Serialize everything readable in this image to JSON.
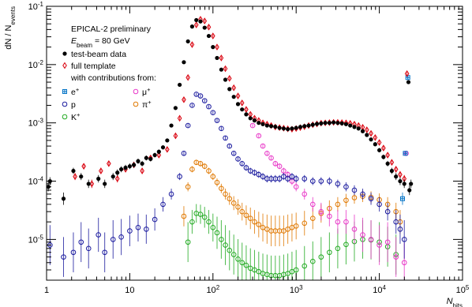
{
  "chart_data": {
    "type": "scatter",
    "title": "",
    "xlabel": "N",
    "xlabel_sub": "hits",
    "ylabel": "dN / N",
    "ylabel_sub": "events",
    "x_scale": "log",
    "y_scale": "log",
    "xlim": [
      1,
      100000
    ],
    "ylim": [
      2e-06,
      0.1
    ],
    "x_ticks": [
      {
        "value": 1,
        "base": "1",
        "exp": ""
      },
      {
        "value": 10,
        "base": "10",
        "exp": ""
      },
      {
        "value": 100,
        "base": "10",
        "exp": "2"
      },
      {
        "value": 1000,
        "base": "10",
        "exp": "3"
      },
      {
        "value": 10000,
        "base": "10",
        "exp": "4"
      },
      {
        "value": 100000,
        "base": "10",
        "exp": "5"
      }
    ],
    "y_ticks": [
      {
        "value": 1e-05,
        "base": "10",
        "exp": "-5"
      },
      {
        "value": 0.0001,
        "base": "10",
        "exp": "-4"
      },
      {
        "value": 0.001,
        "base": "10",
        "exp": "-3"
      },
      {
        "value": 0.01,
        "base": "10",
        "exp": "-2"
      },
      {
        "value": 0.1,
        "base": "10",
        "exp": "-1"
      }
    ],
    "annotations": {
      "line1": "EPICAL-2 preliminary",
      "line2_main": "E",
      "line2_sub": "beam",
      "line2_rest": " = 80 GeV"
    },
    "legend": {
      "placement": "top-left",
      "header": "with contributions from:",
      "main_entries": [
        {
          "label": "test-beam data",
          "series": "data"
        },
        {
          "label": "full template",
          "series": "template"
        }
      ],
      "component_entries": [
        {
          "label": "e",
          "sup": "+",
          "series": "electron"
        },
        {
          "label": "μ",
          "sup": "+",
          "series": "muon"
        },
        {
          "label": "p",
          "sup": "",
          "series": "proton"
        },
        {
          "label": "π",
          "sup": "+",
          "series": "pion"
        },
        {
          "label": "K",
          "sup": "+",
          "series": "kaon"
        }
      ]
    },
    "series": [
      {
        "id": "data",
        "name": "test-beam data",
        "color": "#000000",
        "marker": "filled-circle",
        "x": [
          1.05,
          1.1,
          1.6,
          2.1,
          2.6,
          3.2,
          4.2,
          5.0,
          6.3,
          7.1,
          7.9,
          8.9,
          10,
          11.2,
          12.6,
          14.1,
          15.8,
          17.8,
          20,
          22.4,
          25.1,
          28.2,
          31.6,
          35.5,
          39.8,
          44.7,
          50.1,
          56.2,
          63.1,
          70.8,
          79.4,
          89.1,
          100,
          112,
          126,
          141,
          158,
          178,
          200,
          224,
          251,
          282,
          316,
          355,
          398,
          447,
          501,
          562,
          631,
          708,
          794,
          891,
          1000,
          1122,
          1259,
          1413,
          1585,
          1778,
          1995,
          2239,
          2512,
          2818,
          3162,
          3548,
          3981,
          4467,
          5012,
          5623,
          6310,
          7079,
          7943,
          8913,
          10000,
          11220,
          12589,
          14125,
          15849,
          17783,
          19953,
          22387,
          23000,
          24000
        ],
        "y": [
          8e-05,
          0.0001,
          5e-05,
          0.00015,
          0.00012,
          9e-05,
          0.00011,
          9e-05,
          0.00012,
          0.00014,
          0.00016,
          0.00017,
          0.00018,
          0.00019,
          0.00022,
          0.0002,
          0.00025,
          0.00024,
          0.00028,
          0.00032,
          0.00038,
          0.0005,
          0.0009,
          0.0018,
          0.0045,
          0.011,
          0.025,
          0.045,
          0.058,
          0.055,
          0.043,
          0.031,
          0.02,
          0.013,
          0.0082,
          0.0055,
          0.0038,
          0.0028,
          0.0021,
          0.0017,
          0.0014,
          0.0012,
          0.0011,
          0.001,
          0.00095,
          0.0009,
          0.00088,
          0.00086,
          0.00082,
          0.0008,
          0.00078,
          0.0008,
          0.00082,
          0.00085,
          0.00088,
          0.0009,
          0.00093,
          0.00096,
          0.00098,
          0.001,
          0.001,
          0.00102,
          0.001,
          0.00098,
          0.00095,
          0.0009,
          0.00085,
          0.0008,
          0.00072,
          0.00062,
          0.00052,
          0.00043,
          0.00034,
          0.00026,
          0.0002,
          0.00015,
          0.00012,
          0.0001,
          9e-05,
          0.005,
          7e-05,
          9e-05
        ]
      },
      {
        "id": "template",
        "name": "full template",
        "color": "#d9000d",
        "marker": "open-diamond",
        "x": [
          2.2,
          2.8,
          3.5,
          4.5,
          5.6,
          7.1,
          8.9,
          11.2,
          14.1,
          17.8,
          22.4,
          28.2,
          35.5,
          39.8,
          44.7,
          50.1,
          56.2,
          63.1,
          70.8,
          79.4,
          89.1,
          100,
          112,
          126,
          141,
          158,
          178,
          200,
          224,
          251,
          282,
          316,
          355,
          398,
          447,
          501,
          562,
          631,
          708,
          794,
          891,
          1000,
          1122,
          1259,
          1413,
          1585,
          1778,
          1995,
          2239,
          2512,
          2818,
          3162,
          3548,
          3981,
          4467,
          5012,
          5623,
          6310,
          7079,
          7943,
          8913,
          10000,
          11220,
          12589,
          14125,
          15849,
          17783,
          19953,
          21500
        ],
        "y": [
          0.00012,
          0.00018,
          9e-05,
          0.00015,
          0.0002,
          0.00011,
          0.00016,
          0.00019,
          0.00015,
          0.00025,
          0.00028,
          0.00035,
          0.0006,
          0.0012,
          0.0025,
          0.006,
          0.022,
          0.048,
          0.06,
          0.056,
          0.044,
          0.031,
          0.02,
          0.013,
          0.0085,
          0.0058,
          0.004,
          0.0029,
          0.0022,
          0.0017,
          0.0014,
          0.0012,
          0.0011,
          0.001,
          0.00095,
          0.0009,
          0.00085,
          0.00083,
          0.00081,
          0.00079,
          0.00078,
          0.0008,
          0.00083,
          0.00086,
          0.0009,
          0.00093,
          0.00096,
          0.00099,
          0.001,
          0.00101,
          0.00102,
          0.00102,
          0.00101,
          0.001,
          0.00098,
          0.00095,
          0.0009,
          0.00084,
          0.00076,
          0.00066,
          0.00056,
          0.00046,
          0.00037,
          0.00028,
          0.00021,
          0.00016,
          0.00013,
          0.00011,
          0.007
        ]
      },
      {
        "id": "electron",
        "name": "e+",
        "color": "#0072c6",
        "marker": "cross-box",
        "x": [
          19000,
          20500,
          22000
        ],
        "y": [
          5e-05,
          0.0003,
          0.006
        ]
      },
      {
        "id": "muon",
        "name": "μ+",
        "color": "#e838c8",
        "marker": "open-circle",
        "x": [
          300,
          355,
          398,
          447,
          501,
          562,
          631,
          708,
          794,
          891,
          1000,
          1259,
          1585,
          1995,
          2512,
          3162,
          3981,
          5012,
          6310,
          7943,
          10000,
          12589,
          15849,
          19953,
          21000
        ],
        "y": [
          0.0009,
          0.0006,
          0.0004,
          0.0003,
          0.00025,
          0.0002,
          0.00018,
          0.00015,
          0.00013,
          0.0001,
          8e-05,
          6e-05,
          4e-05,
          3e-05,
          2.5e-05,
          2e-05,
          2e-05,
          1.5e-05,
          1.2e-05,
          1e-05,
          8e-06,
          9e-06,
          5e-06,
          4e-06,
          0.0003
        ]
      },
      {
        "id": "proton",
        "name": "p",
        "color": "#1a1a9e",
        "marker": "open-circle",
        "x": [
          1.1,
          1.6,
          2.1,
          2.6,
          3.2,
          4.2,
          5.0,
          6.3,
          7.9,
          10,
          12.6,
          15.8,
          20,
          25.1,
          31.6,
          39.8,
          44.7,
          50.1,
          56.2,
          63.1,
          70.8,
          79.4,
          89.1,
          100,
          112,
          126,
          141,
          158,
          178,
          200,
          224,
          251,
          282,
          316,
          355,
          398,
          447,
          501,
          562,
          631,
          708,
          794,
          891,
          1000,
          1259,
          1585,
          1995,
          2512,
          3162,
          3981,
          5012,
          6310,
          7943,
          10000,
          12589,
          15849,
          17783,
          19953
        ],
        "y": [
          8e-06,
          5e-06,
          6e-06,
          9e-06,
          7e-06,
          1.2e-05,
          6e-06,
          1e-05,
          1.1e-05,
          1.4e-05,
          1.6e-05,
          1.5e-05,
          2.2e-05,
          4e-05,
          6e-05,
          0.00012,
          0.0003,
          0.0009,
          0.002,
          0.0031,
          0.0029,
          0.0024,
          0.0019,
          0.0015,
          0.0011,
          0.0008,
          0.00055,
          0.0004,
          0.0003,
          0.00024,
          0.0002,
          0.00017,
          0.00015,
          0.00014,
          0.00013,
          0.00012,
          0.00011,
          0.00011,
          0.00011,
          0.00011,
          0.00012,
          0.00011,
          0.00012,
          0.00011,
          0.00011,
          0.0001,
          0.0001,
          0.0001,
          9e-05,
          8e-05,
          7e-05,
          6e-05,
          5e-05,
          4e-05,
          3e-05,
          2e-05,
          1.5e-05,
          1e-05
        ]
      },
      {
        "id": "pion",
        "name": "π+",
        "color": "#e07800",
        "marker": "open-circle",
        "x": [
          44.7,
          50.1,
          56.2,
          63.1,
          70.8,
          79.4,
          89.1,
          100,
          112,
          126,
          141,
          158,
          178,
          200,
          224,
          251,
          282,
          316,
          355,
          398,
          447,
          501,
          562,
          631,
          708,
          794,
          891,
          1000,
          1259,
          1585,
          1995,
          2512,
          3162,
          3981,
          5012,
          6310,
          7943,
          10000,
          12589,
          15849,
          17783
        ],
        "y": [
          2.5e-05,
          8e-05,
          0.00016,
          0.00021,
          0.0002,
          0.00018,
          0.00015,
          0.00012,
          9.5e-05,
          7.5e-05,
          6e-05,
          5e-05,
          4.2e-05,
          3.6e-05,
          3e-05,
          2.6e-05,
          2.3e-05,
          2e-05,
          1.8e-05,
          1.6e-05,
          1.5e-05,
          1.4e-05,
          1.4e-05,
          1.4e-05,
          1.4e-05,
          1.5e-05,
          1.6e-05,
          1.7e-05,
          1.9e-05,
          2.3e-05,
          2.8e-05,
          3.4e-05,
          4e-05,
          4.7e-05,
          5.2e-05,
          5.5e-05,
          5.3e-05,
          4.8e-05,
          4e-05,
          3e-05,
          2e-05
        ]
      },
      {
        "id": "kaon",
        "name": "K+",
        "color": "#22aa22",
        "marker": "open-circle",
        "x": [
          50.1,
          56.2,
          63.1,
          70.8,
          79.4,
          89.1,
          100,
          112,
          126,
          141,
          158,
          178,
          200,
          224,
          251,
          282,
          316,
          355,
          398,
          447,
          501,
          562,
          631,
          708,
          794,
          891,
          1000,
          1259,
          1585,
          1995,
          2512,
          3162,
          3981,
          5012,
          6310,
          7943,
          10000,
          12589,
          15849
        ],
        "y": [
          9e-06,
          2e-05,
          2.8e-05,
          2.7e-05,
          2.4e-05,
          2e-05,
          1.6e-05,
          1.3e-05,
          1e-05,
          8e-06,
          6.5e-06,
          5.5e-06,
          4.6e-06,
          4e-06,
          3.6e-06,
          3.2e-06,
          3e-06,
          2.8e-06,
          2.6e-06,
          2.5e-06,
          2.4e-06,
          2.4e-06,
          2.4e-06,
          2.5e-06,
          2.6e-06,
          2.8e-06,
          3e-06,
          3.5e-06,
          4.2e-06,
          5e-06,
          6e-06,
          7e-06,
          8.2e-06,
          9.2e-06,
          1e-05,
          9.8e-06,
          9e-06,
          7.5e-06,
          5.5e-06
        ]
      }
    ]
  }
}
